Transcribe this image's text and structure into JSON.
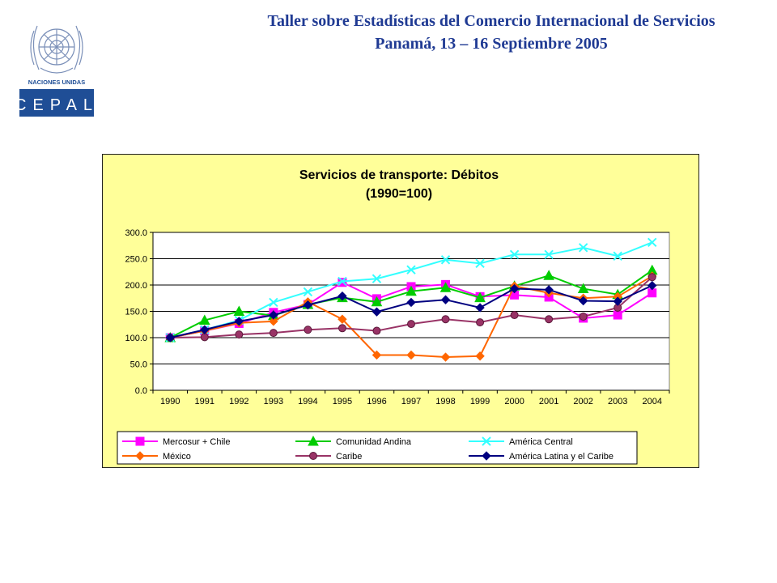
{
  "header": {
    "line1": "Taller sobre Estadísticas del Comercio Internacional de Servicios",
    "line2": "Panamá, 13 – 16 Septiembre 2005"
  },
  "logo": {
    "org": "NACIONES UNIDAS",
    "acronym": "CEPAL",
    "color": "#1f4e96"
  },
  "chart_data": {
    "type": "line",
    "title": "Servicios de transporte: Débitos",
    "subtitle": "(1990=100)",
    "xlabel": "",
    "ylabel": "",
    "ylim": [
      0,
      300
    ],
    "yticks": [
      "0.0",
      "50.0",
      "100.0",
      "150.0",
      "200.0",
      "250.0",
      "300.0"
    ],
    "grid": true,
    "legend_position": "bottom",
    "categories": [
      "1990",
      "1991",
      "1992",
      "1993",
      "1994",
      "1995",
      "1996",
      "1997",
      "1998",
      "1999",
      "2000",
      "2001",
      "2002",
      "2003",
      "2004"
    ],
    "series": [
      {
        "name": "Mercosur + Chile",
        "color": "#ff00ff",
        "marker": "square",
        "values": [
          100,
          113,
          127,
          148,
          163,
          205,
          174,
          197,
          201,
          178,
          181,
          177,
          137,
          143,
          185
        ]
      },
      {
        "name": "Comunidad Andina",
        "color": "#00cc00",
        "marker": "triangle",
        "values": [
          100,
          133,
          150,
          142,
          163,
          176,
          168,
          188,
          195,
          176,
          198,
          218,
          193,
          182,
          228
        ]
      },
      {
        "name": "América Central",
        "color": "#33ffff",
        "marker": "x",
        "values": [
          100,
          115,
          133,
          167,
          187,
          207,
          212,
          229,
          248,
          241,
          258,
          258,
          271,
          255,
          281
        ]
      },
      {
        "name": "México",
        "color": "#ff6600",
        "marker": "diamond",
        "values": [
          100,
          113,
          128,
          131,
          168,
          135,
          67,
          67,
          63,
          65,
          198,
          185,
          175,
          178,
          217
        ]
      },
      {
        "name": "Caribe",
        "color": "#993366",
        "marker": "circle",
        "values": [
          100,
          101,
          106,
          109,
          115,
          118,
          113,
          126,
          135,
          129,
          143,
          135,
          140,
          157,
          215
        ]
      },
      {
        "name": "América Latina y el Caribe",
        "color": "#000080",
        "marker": "diamond",
        "values": [
          100,
          115,
          131,
          143,
          162,
          179,
          149,
          167,
          172,
          157,
          193,
          191,
          170,
          169,
          199
        ]
      }
    ]
  }
}
